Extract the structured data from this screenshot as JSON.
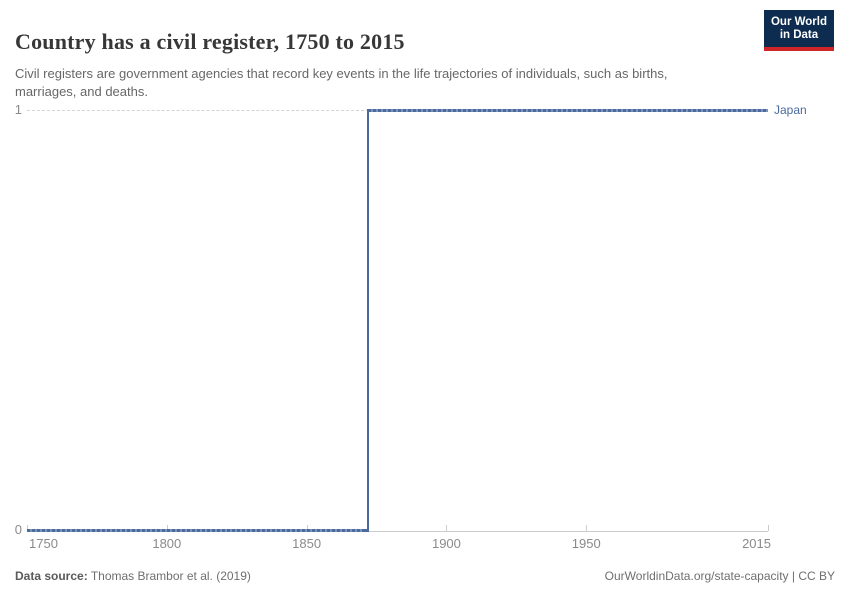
{
  "header": {
    "title": "Country has a civil register, 1750 to 2015",
    "subtitle": "Civil registers are government agencies that record key events in the life trajectories of individuals, such as births, marriages, and deaths.",
    "logo": {
      "line1": "Our World",
      "line2": "in Data",
      "bg_color": "#0d2c4f",
      "bar_color": "#cf2428"
    }
  },
  "chart_data": {
    "type": "line",
    "title": "Country has a civil register, 1750 to 2015",
    "xlabel": "",
    "ylabel": "",
    "x_domain": [
      1750,
      2015
    ],
    "y_domain": [
      0,
      1
    ],
    "x_ticks": [
      "1750",
      "1800",
      "1850",
      "1900",
      "1950",
      "2015"
    ],
    "x_tick_values": [
      1750,
      1800,
      1850,
      1900,
      1950,
      2015
    ],
    "y_ticks": [
      "0",
      "1"
    ],
    "y_tick_values": [
      0,
      1
    ],
    "grid": "horizontal dashed gridline at y=1, solid axis at y=0",
    "legend_position": "label at right end of line",
    "series": [
      {
        "name": "Japan",
        "color": "#4b6a9e",
        "step": true,
        "points": [
          {
            "x": 1750,
            "y": 0
          },
          {
            "x": 1871,
            "y": 0
          },
          {
            "x": 1872,
            "y": 1
          },
          {
            "x": 2015,
            "y": 1
          }
        ]
      }
    ],
    "colors": {
      "gridline": "#d4d4d4",
      "axis_line": "#cccccc",
      "tick_label": "#8a8a8a"
    }
  },
  "footer": {
    "source_label": "Data source:",
    "source_text": " Thomas Brambor et al. (2019)",
    "attribution_link": "OurWorldinData.org/state-capacity",
    "attribution_license": " | CC BY"
  }
}
